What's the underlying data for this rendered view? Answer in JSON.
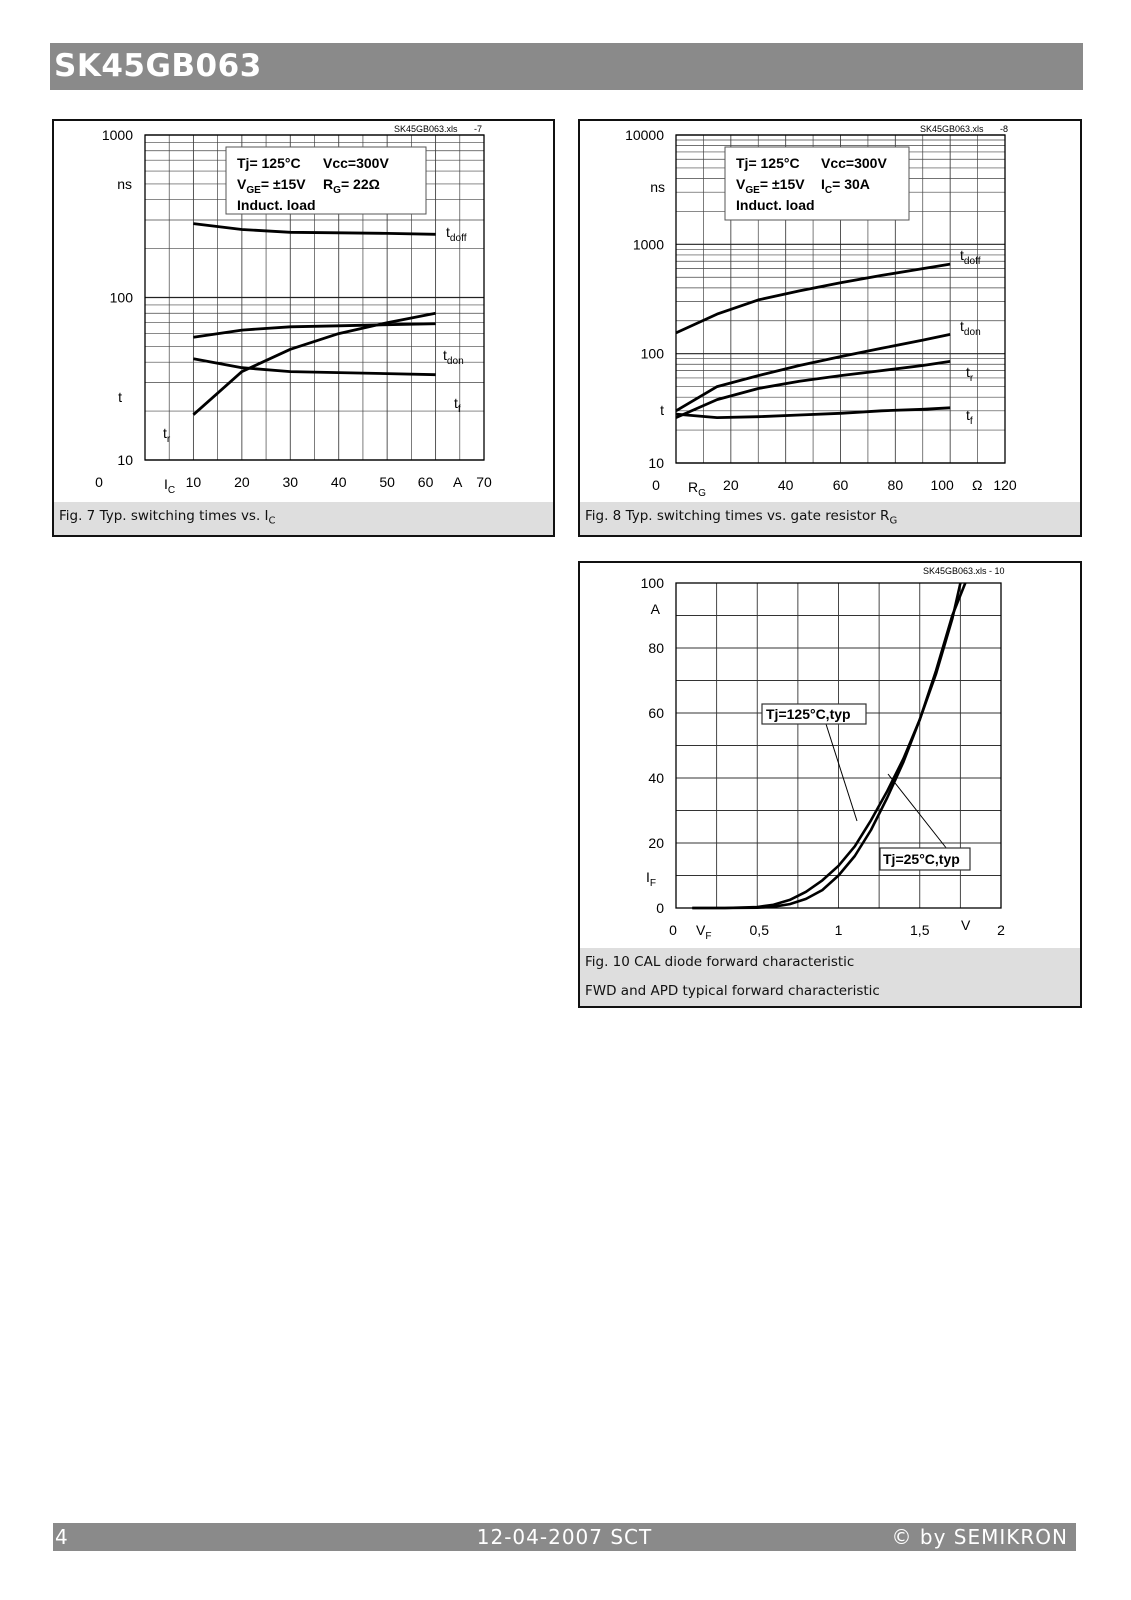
{
  "header": {
    "title": "SK45GB063"
  },
  "footer": {
    "page": "4",
    "date": "12-04-2007  SCT",
    "copyright": "© by SEMIKRON"
  },
  "chart_data": [
    {
      "id": "fig7",
      "type": "line",
      "y_scale": "log",
      "file_label": "SK45GB063.xls",
      "file_suffix": "-7",
      "caption": "Fig. 7 Typ. switching times vs. I",
      "caption_sub": "C",
      "xlim": [
        0,
        70
      ],
      "ylim": [
        10,
        1000
      ],
      "x_ticks": [
        "0",
        "10",
        "20",
        "30",
        "40",
        "50",
        "60",
        "70"
      ],
      "x_unit": "A",
      "x_axis_symbol": "I",
      "x_axis_symbol_sub": "C",
      "y_ticks": [
        "10",
        "100",
        "1000"
      ],
      "y_unit": "ns",
      "y_axis_symbol": "t",
      "legend_lines": [
        {
          "a": "Tj= 125°C",
          "b": "Vcc=300V"
        },
        {
          "a": "V",
          "a_sub": "GE",
          "a_rest": "= ±15V",
          "b": "R",
          "b_sub": "G",
          "b_rest": "=  22Ω"
        },
        {
          "a": "Induct. load"
        }
      ],
      "series": [
        {
          "name": "t",
          "name_sub": "doff",
          "x": [
            10,
            20,
            30,
            40,
            50,
            60
          ],
          "y": [
            285,
            262,
            252,
            250,
            248,
            245
          ]
        },
        {
          "name": "t",
          "name_sub": "don",
          "x": [
            10,
            20,
            30,
            40,
            50,
            60
          ],
          "y": [
            57,
            63,
            66,
            67,
            68,
            69
          ]
        },
        {
          "name": "t",
          "name_sub": "f",
          "x": [
            10,
            20,
            30,
            40,
            50,
            60
          ],
          "y": [
            42,
            37,
            35,
            34.5,
            34,
            33.5
          ]
        },
        {
          "name": "t",
          "name_sub": "r",
          "x": [
            10,
            20,
            30,
            40,
            50,
            60
          ],
          "y": [
            19,
            35,
            48,
            60,
            70,
            80
          ]
        }
      ]
    },
    {
      "id": "fig8",
      "type": "line",
      "y_scale": "log",
      "file_label": "SK45GB063.xls",
      "file_suffix": "-8",
      "caption": "Fig. 8 Typ. switching times vs. gate resistor R",
      "caption_sub": "G",
      "xlim": [
        0,
        120
      ],
      "ylim": [
        10,
        10000
      ],
      "x_ticks": [
        "0",
        "20",
        "40",
        "60",
        "80",
        "100",
        "120"
      ],
      "x_unit": "Ω",
      "x_axis_symbol": "R",
      "x_axis_symbol_sub": "G",
      "y_ticks": [
        "10",
        "100",
        "1000",
        "10000"
      ],
      "y_unit": "ns",
      "y_axis_symbol": "t",
      "legend_lines": [
        {
          "a": "Tj= 125°C",
          "b": "Vcc=300V"
        },
        {
          "a": "V",
          "a_sub": "GE",
          "a_rest": "= ±15V",
          "b": "I",
          "b_sub": "C",
          "b_rest": "=  30A"
        },
        {
          "a": "Induct. load"
        }
      ],
      "series": [
        {
          "name": "t",
          "name_sub": "doff",
          "x": [
            0,
            15,
            30,
            45,
            60,
            75,
            90,
            100
          ],
          "y": [
            155,
            230,
            310,
            375,
            445,
            520,
            600,
            660
          ]
        },
        {
          "name": "t",
          "name_sub": "don",
          "x": [
            0,
            15,
            30,
            45,
            60,
            75,
            90,
            100
          ],
          "y": [
            30,
            50,
            63,
            78,
            94,
            112,
            133,
            150
          ]
        },
        {
          "name": "t",
          "name_sub": "r",
          "x": [
            0,
            15,
            30,
            45,
            60,
            75,
            90,
            100
          ],
          "y": [
            26,
            38,
            48,
            56,
            63,
            70,
            78,
            85
          ]
        },
        {
          "name": "t",
          "name_sub": "f",
          "x": [
            0,
            15,
            30,
            45,
            60,
            75,
            90,
            100
          ],
          "y": [
            28,
            26,
            26.5,
            27.5,
            28.5,
            30,
            31,
            32
          ]
        }
      ]
    },
    {
      "id": "fig10",
      "type": "line",
      "y_scale": "linear",
      "file_label": "SK45GB063.xls - 10",
      "file_suffix": "",
      "caption": "Fig. 10 CAL diode forward characteristic",
      "caption_line2": "FWD and APD typical forward characteristic",
      "xlim": [
        0,
        2
      ],
      "ylim": [
        0,
        100
      ],
      "x_ticks": [
        "0",
        "0,5",
        "1",
        "1,5",
        "2"
      ],
      "x_unit": "V",
      "x_axis_symbol": "V",
      "x_axis_symbol_sub": "F",
      "y_ticks": [
        "0",
        "20",
        "40",
        "60",
        "80",
        "100"
      ],
      "y_unit": "A",
      "y_axis_symbol": "I",
      "y_axis_symbol_sub": "F",
      "series": [
        {
          "name": "Tj=125°C,typ",
          "x": [
            0.1,
            0.3,
            0.5,
            0.6,
            0.7,
            0.8,
            0.9,
            1.0,
            1.1,
            1.2,
            1.3,
            1.4,
            1.5,
            1.6,
            1.7,
            1.75
          ],
          "y": [
            0,
            0,
            0.3,
            1,
            2.5,
            5,
            8.5,
            13,
            19,
            27,
            36,
            46,
            58,
            72,
            89,
            100
          ]
        },
        {
          "name": "Tj=25°C,typ",
          "x": [
            0.1,
            0.3,
            0.5,
            0.6,
            0.7,
            0.8,
            0.9,
            1.0,
            1.1,
            1.2,
            1.3,
            1.4,
            1.5,
            1.6,
            1.7,
            1.78
          ],
          "y": [
            0,
            0,
            0.1,
            0.4,
            1.2,
            2.8,
            5.5,
            10,
            16,
            24,
            34,
            45,
            58,
            73,
            90,
            100
          ]
        }
      ]
    }
  ]
}
